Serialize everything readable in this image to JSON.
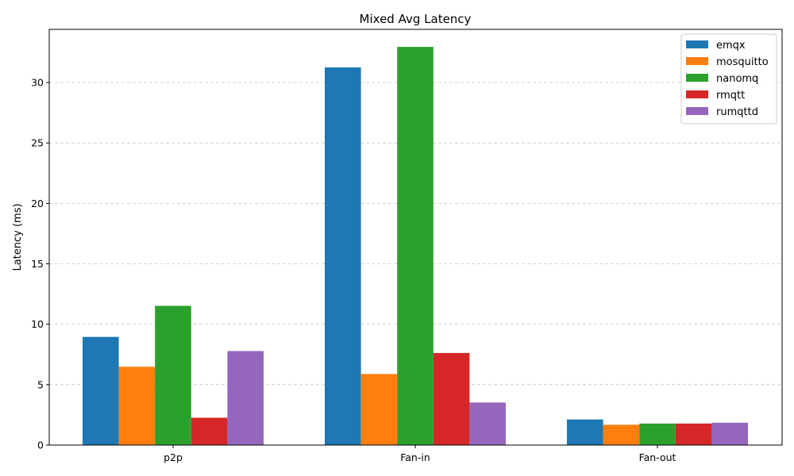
{
  "chart_data": {
    "type": "bar",
    "title": "Mixed Avg Latency",
    "xlabel": "",
    "ylabel": "Latency (ms)",
    "ylim": [
      0,
      34.4
    ],
    "yticks": [
      0,
      5,
      10,
      15,
      20,
      25,
      30
    ],
    "categories": [
      "p2p",
      "Fan-in",
      "Fan-out"
    ],
    "series": [
      {
        "name": "emqx",
        "color": "#1f77b4",
        "values": [
          8.95,
          31.25,
          2.12
        ]
      },
      {
        "name": "mosquitto",
        "color": "#ff7f0e",
        "values": [
          6.48,
          5.88,
          1.68
        ]
      },
      {
        "name": "nanomq",
        "color": "#2ca02c",
        "values": [
          11.52,
          32.95,
          1.78
        ]
      },
      {
        "name": "rmqtt",
        "color": "#d62728",
        "values": [
          2.26,
          7.62,
          1.78
        ]
      },
      {
        "name": "rumqttd",
        "color": "#9467bd",
        "values": [
          7.78,
          3.52,
          1.85
        ]
      }
    ],
    "grid": "y-dashed",
    "legend_position": "top-right"
  }
}
